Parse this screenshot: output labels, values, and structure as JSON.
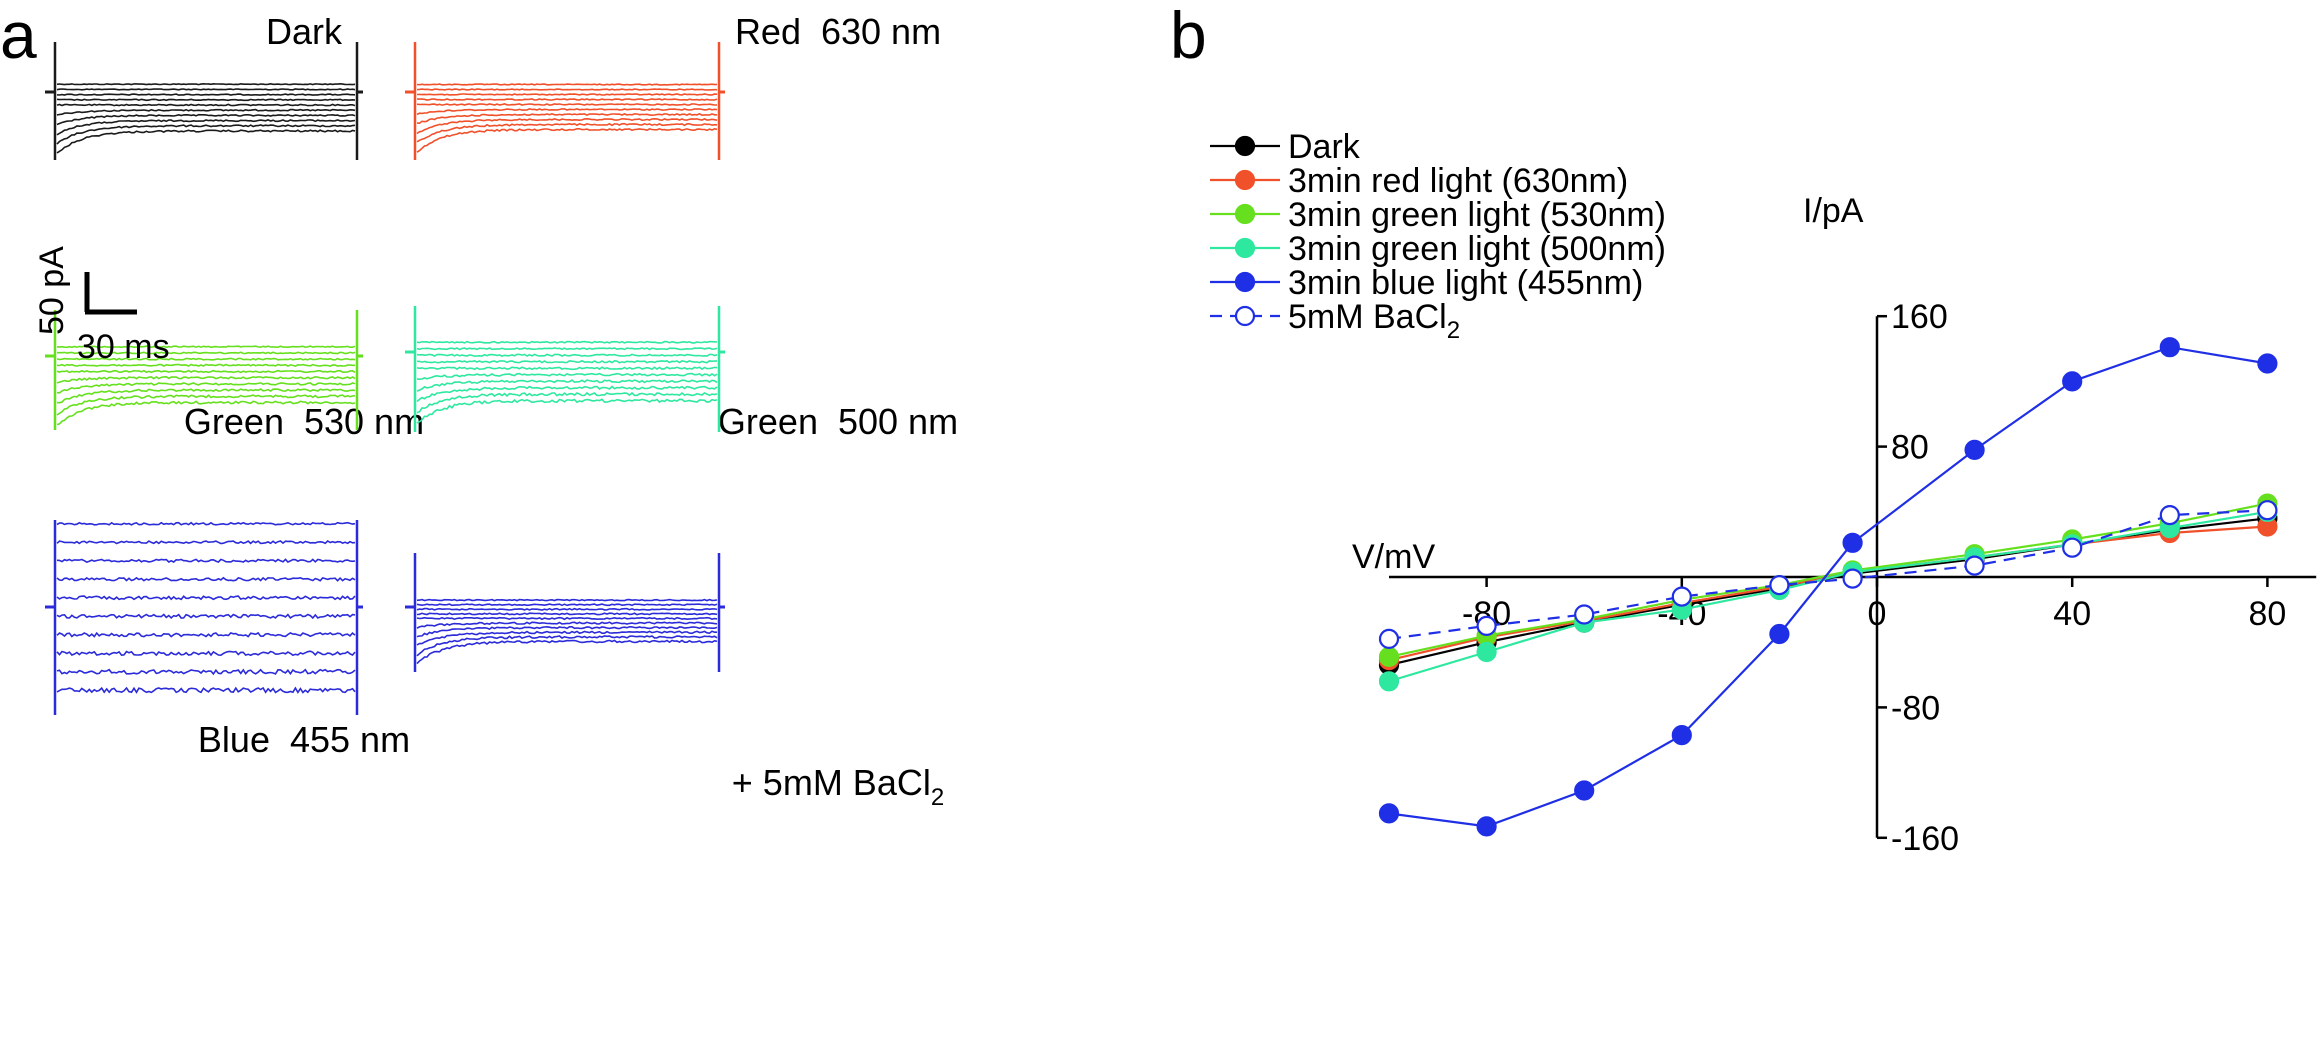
{
  "panel_a": {
    "letter": "a",
    "scale_bar": {
      "current": "50 pA",
      "time": "30 ms"
    },
    "traces": [
      {
        "title": "Dark",
        "color": "#1a1a1a",
        "n_sweeps": 10
      },
      {
        "title": "Red  630 nm",
        "color": "#f0502a",
        "n_sweeps": 10
      },
      {
        "title": "Green  530 nm",
        "color": "#66e01e",
        "n_sweeps": 10
      },
      {
        "title": "Green  500 nm",
        "color": "#2ee8a0",
        "n_sweeps": 10
      },
      {
        "title": "Blue  455 nm",
        "color": "#2b2bd9",
        "n_sweeps": 10
      },
      {
        "title": "+ 5mM BaCl",
        "title_sub": "2",
        "color": "#2b2bd9",
        "n_sweeps": 10
      }
    ]
  },
  "panel_b": {
    "letter": "b"
  },
  "chart_data": {
    "type": "line",
    "title": "",
    "xlabel": "V/mV",
    "ylabel": "I/pA",
    "xlim": [
      -100,
      90
    ],
    "ylim": [
      -160,
      160
    ],
    "x_ticks": [
      -80,
      -40,
      0,
      40,
      80
    ],
    "x_tick_labels": [
      "-80",
      "-40",
      "0",
      "40",
      "80"
    ],
    "y_ticks": [
      -160,
      -80,
      80,
      160
    ],
    "y_tick_labels": [
      "-160",
      "-80",
      "80",
      "160"
    ],
    "x": [
      -100,
      -80,
      -60,
      -40,
      -20,
      -5,
      20,
      40,
      60,
      80
    ],
    "legend_position": "top-left",
    "series": [
      {
        "name": "Dark",
        "color": "#000000",
        "marker": "filled",
        "line": "solid",
        "values": [
          -54,
          -40,
          -28,
          -17,
          -7,
          2,
          11,
          20,
          29,
          36
        ]
      },
      {
        "name": "3min red light (630nm)",
        "color": "#f0502a",
        "marker": "filled",
        "line": "solid",
        "values": [
          -51,
          -37,
          -27,
          -16,
          -6,
          3,
          12,
          20,
          27,
          31
        ]
      },
      {
        "name": "3min green light (530nm)",
        "color": "#66e01e",
        "marker": "filled",
        "line": "solid",
        "values": [
          -49,
          -36,
          -26,
          -14,
          -5,
          4,
          14,
          23,
          33,
          45
        ]
      },
      {
        "name": "3min green light (500nm)",
        "color": "#2ee8a0",
        "marker": "filled",
        "line": "solid",
        "values": [
          -64,
          -46,
          -28,
          -20,
          -8,
          3,
          12,
          20,
          30,
          40
        ]
      },
      {
        "name": "3min blue light (455nm)",
        "color": "#1f2fe6",
        "marker": "filled",
        "line": "solid",
        "values": [
          -145,
          -153,
          -131,
          -97,
          -35,
          21,
          78,
          120,
          141,
          131
        ]
      },
      {
        "name": "5mM BaCl",
        "name_sub": "2",
        "color": "#1f2fe6",
        "marker": "open",
        "line": "dashed",
        "values": [
          -38,
          -30,
          -23,
          -12,
          -5,
          -1,
          7,
          18,
          38,
          41
        ]
      }
    ]
  }
}
